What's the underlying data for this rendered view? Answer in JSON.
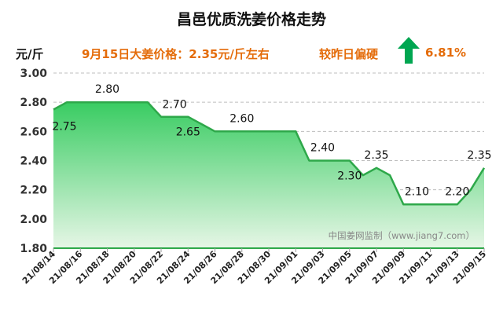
{
  "header": {
    "title": "昌邑优质洗姜价格走势",
    "unit": "元/斤",
    "price_note": "9月15日大姜价格：2.35元/斤左右",
    "compare_label": "较昨日偏硬",
    "compare_value": "6.81%",
    "trend_icon": "up-arrow-icon",
    "trend_color": "#00a651"
  },
  "watermark": "中国姜网监制（www.jiang7.com）",
  "chart_data": {
    "type": "area",
    "title": "昌邑优质洗姜价格走势",
    "ylabel": "元/斤",
    "xlabel": "",
    "ylim": [
      1.8,
      3.0
    ],
    "yticks": [
      "1.80",
      "2.00",
      "2.20",
      "2.40",
      "2.60",
      "2.80",
      "3.00"
    ],
    "xticks": [
      "21/08/14",
      "21/08/16",
      "21/08/18",
      "21/08/20",
      "21/08/22",
      "21/08/24",
      "21/08/26",
      "21/08/28",
      "21/08/30",
      "21/09/01",
      "21/09/03",
      "21/09/05",
      "21/09/07",
      "21/09/09",
      "21/09/11",
      "21/09/13",
      "21/09/15"
    ],
    "points": [
      {
        "x": "21/08/14",
        "y": 2.75
      },
      {
        "x": "21/08/15",
        "y": 2.8
      },
      {
        "x": "21/08/16",
        "y": 2.8
      },
      {
        "x": "21/08/17",
        "y": 2.8
      },
      {
        "x": "21/08/18",
        "y": 2.8
      },
      {
        "x": "21/08/19",
        "y": 2.8
      },
      {
        "x": "21/08/20",
        "y": 2.8
      },
      {
        "x": "21/08/21",
        "y": 2.8
      },
      {
        "x": "21/08/22",
        "y": 2.7
      },
      {
        "x": "21/08/23",
        "y": 2.7
      },
      {
        "x": "21/08/24",
        "y": 2.7
      },
      {
        "x": "21/08/25",
        "y": 2.65
      },
      {
        "x": "21/08/26",
        "y": 2.6
      },
      {
        "x": "21/08/27",
        "y": 2.6
      },
      {
        "x": "21/08/28",
        "y": 2.6
      },
      {
        "x": "21/08/29",
        "y": 2.6
      },
      {
        "x": "21/08/30",
        "y": 2.6
      },
      {
        "x": "21/08/31",
        "y": 2.6
      },
      {
        "x": "21/09/01",
        "y": 2.6
      },
      {
        "x": "21/09/02",
        "y": 2.4
      },
      {
        "x": "21/09/03",
        "y": 2.4
      },
      {
        "x": "21/09/04",
        "y": 2.4
      },
      {
        "x": "21/09/05",
        "y": 2.4
      },
      {
        "x": "21/09/06",
        "y": 2.3
      },
      {
        "x": "21/09/07",
        "y": 2.35
      },
      {
        "x": "21/09/08",
        "y": 2.3
      },
      {
        "x": "21/09/09",
        "y": 2.1
      },
      {
        "x": "21/09/10",
        "y": 2.1
      },
      {
        "x": "21/09/11",
        "y": 2.1
      },
      {
        "x": "21/09/12",
        "y": 2.1
      },
      {
        "x": "21/09/13",
        "y": 2.1
      },
      {
        "x": "21/09/14",
        "y": 2.2
      },
      {
        "x": "21/09/15",
        "y": 2.35
      }
    ],
    "data_labels": [
      {
        "x": "21/08/14",
        "text": "2.75"
      },
      {
        "x": "21/08/18",
        "text": "2.80"
      },
      {
        "x": "21/08/23",
        "text": "2.70"
      },
      {
        "x": "21/08/24",
        "text": "2.65"
      },
      {
        "x": "21/08/28",
        "text": "2.60"
      },
      {
        "x": "21/09/03",
        "text": "2.40"
      },
      {
        "x": "21/09/05",
        "text": "2.30"
      },
      {
        "x": "21/09/07",
        "text": "2.35"
      },
      {
        "x": "21/09/10",
        "text": "2.10"
      },
      {
        "x": "21/09/13",
        "text": "2.20"
      },
      {
        "x": "21/09/15",
        "text": "2.35"
      }
    ],
    "grid": true,
    "legend": "none",
    "colors": {
      "line": "#2ea84a",
      "fill_top": "#39cc62",
      "fill_bottom": "#e6f6e6"
    }
  }
}
